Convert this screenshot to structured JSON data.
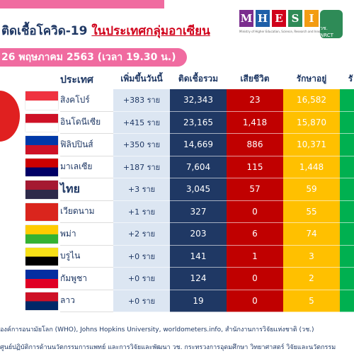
{
  "header": {
    "title": "ติดเชื้อโควิด-19",
    "title_highlight": "ในประเทศกลุ่มอาเซียน",
    "date": "26 พฤษภาคม 2563 (เวลา 19.30 น.)",
    "logo_letters": [
      "M",
      "H",
      "E",
      "S",
      "I"
    ],
    "logo_caption": "Ministry of Higher Education, Science, Research and Innovation",
    "logo_nrct": "วช. NRCT"
  },
  "table": {
    "columns": [
      "ประเทศ",
      "เพิ่มขึ้นวันนี้",
      "ติดเชื้อรวม",
      "เสียชีวิต",
      "รักษาอยู่",
      "รั"
    ],
    "rows": [
      [
        "สิงคโปร์",
        "+383 ราย",
        "32,343",
        "23",
        "16,582"
      ],
      [
        "อินโดนีเซีย",
        "+415 ราย",
        "23,165",
        "1,418",
        "15,870"
      ],
      [
        "ฟิลิปปินส์",
        "+350 ราย",
        "14,669",
        "886",
        "10,371"
      ],
      [
        "มาเลเซีย",
        "+187 ราย",
        "7,604",
        "115",
        "1,448"
      ],
      [
        "ไทย",
        "+3 ราย",
        "3,045",
        "57",
        "59"
      ],
      [
        "เวียดนาม",
        "+1 ราย",
        "327",
        "0",
        "55"
      ],
      [
        "พม่า",
        "+2 ราย",
        "203",
        "6",
        "74"
      ],
      [
        "บรูไน",
        "+0 ราย",
        "141",
        "1",
        "3"
      ],
      [
        "กัมพูชา",
        "+0 ราย",
        "124",
        "0",
        "2"
      ],
      [
        "ลาว",
        "+0 ราย",
        "19",
        "0",
        "5"
      ]
    ]
  },
  "footer": {
    "source": "องค์การอนามัยโลก (WHO), Johns Hopkins University, worldometers.info, สำนักงานการวิจัยแห่งชาติ (วช.)",
    "credit": "ศูนย์ปฏิบัติการด้านนวัตกรรมการแพทย์ และการวิจัยและพัฒนา  วช.   กระทรวงการอุดมศึกษา วิทยาศาสตร์ วิจัยและนวัตกรรม"
  }
}
